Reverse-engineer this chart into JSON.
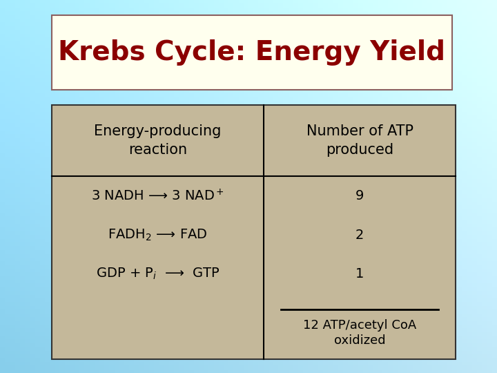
{
  "title": "Krebs Cycle: Energy Yield",
  "title_color": "#8B0000",
  "title_bg": "#FFFFEE",
  "title_border": "#8B6060",
  "table_bg": "#C4B89A",
  "table_border": "#333333",
  "col1_header": "Energy-producing\nreaction",
  "col2_header": "Number of ATP\nproduced",
  "row1_left": "3 NADH ",
  "row1_arrow": "⟶",
  "row1_right": " 3 NAD",
  "row1_sup": "+",
  "row2_left": "FADH",
  "row2_sub": "2",
  "row2_arrow": "⟶",
  "row2_right": "FAD",
  "row3_left": "GDP + P",
  "row3_sub": "i",
  "row3_arrow": "⟶",
  "row3_right": "  GTP",
  "atp_values": [
    "9",
    "2",
    "1"
  ],
  "total_label": "12 ATP/acetyl CoA\noxidized",
  "font_size_title": 28,
  "font_size_header": 15,
  "font_size_row": 14,
  "font_size_total": 13,
  "bg_color_top": "#A8D8EA",
  "bg_color_bottom": "#C8E8F8",
  "bg_color_left": "#87CEEB",
  "bg_color_right": "#C5E8F5"
}
